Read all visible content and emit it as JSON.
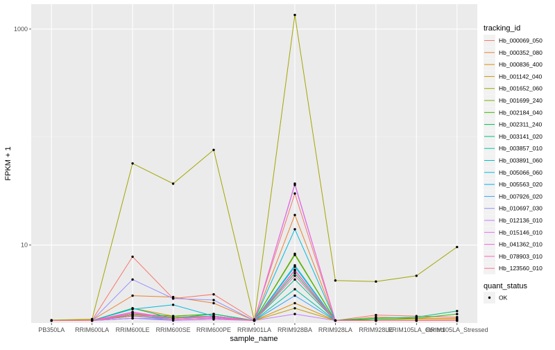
{
  "chart_data": {
    "type": "line",
    "xlabel": "sample_name",
    "ylabel": "FPKM + 1",
    "y_scale": "log10",
    "ylim": [
      1.9,
      1700
    ],
    "grid": true,
    "legend_placement": "right",
    "categories": [
      "PB350LA",
      "RRIM600LA",
      "RRIM600LE",
      "RRIM600SE",
      "RRIM600PE",
      "RRIM901LA",
      "RRIM928BA",
      "RRIM928LA",
      "RRIM928LE",
      "RRIM105LA_Control",
      "RRIM105LA_Stressed"
    ],
    "y_ticks": [
      10,
      1000
    ],
    "y_tick_labels": [
      "10",
      "1000"
    ],
    "legend_title": "tracking_id",
    "series": [
      {
        "name": "Hb_000069_050",
        "color": "#F8766D",
        "values": [
          2.01,
          2.02,
          7.8,
          3.2,
          3.5,
          2.05,
          30.0,
          2.0,
          2.25,
          2.2,
          2.15
        ]
      },
      {
        "name": "Hb_000352_080",
        "color": "#EA8331",
        "values": [
          2.0,
          2.02,
          3.4,
          3.3,
          2.9,
          2.0,
          19.0,
          2.0,
          2.15,
          2.1,
          2.1
        ]
      },
      {
        "name": "Hb_000836_400",
        "color": "#D89000",
        "values": [
          2.0,
          2.0,
          2.6,
          2.2,
          2.3,
          2.0,
          2.9,
          2.0,
          2.05,
          2.05,
          2.05
        ]
      },
      {
        "name": "Hb_001142_040",
        "color": "#C09B00",
        "values": [
          2.0,
          2.0,
          2.4,
          2.1,
          2.2,
          2.0,
          2.6,
          2.0,
          2.0,
          2.0,
          2.0
        ]
      },
      {
        "name": "Hb_001652_060",
        "color": "#A3A500",
        "values": [
          2.02,
          2.06,
          57.0,
          37.0,
          76.0,
          2.02,
          1350.0,
          4.7,
          4.6,
          5.2,
          9.6
        ]
      },
      {
        "name": "Hb_001699_240",
        "color": "#7CAE00",
        "values": [
          2.0,
          2.0,
          2.25,
          2.15,
          2.2,
          2.0,
          8.3,
          2.0,
          2.0,
          2.0,
          2.0
        ]
      },
      {
        "name": "Hb_002184_040",
        "color": "#39B600",
        "values": [
          2.0,
          2.0,
          2.3,
          2.2,
          2.3,
          2.0,
          8.1,
          2.0,
          2.05,
          2.1,
          2.3
        ]
      },
      {
        "name": "Hb_002311_240",
        "color": "#00BB4E",
        "values": [
          2.0,
          2.0,
          2.2,
          2.1,
          2.2,
          2.0,
          5.5,
          2.0,
          2.0,
          2.0,
          2.0
        ]
      },
      {
        "name": "Hb_003141_020",
        "color": "#00BF7D",
        "values": [
          2.0,
          2.0,
          2.6,
          2.1,
          2.3,
          2.0,
          4.8,
          2.0,
          2.1,
          2.15,
          2.45
        ]
      },
      {
        "name": "Hb_003857_010",
        "color": "#00C1A3",
        "values": [
          2.0,
          2.0,
          2.1,
          2.05,
          2.1,
          2.0,
          3.9,
          2.0,
          2.0,
          2.0,
          2.0
        ]
      },
      {
        "name": "Hb_003891_060",
        "color": "#00BFC4",
        "values": [
          2.0,
          2.0,
          2.2,
          2.1,
          2.15,
          2.0,
          6.5,
          2.0,
          2.0,
          2.0,
          2.0
        ]
      },
      {
        "name": "Hb_005066_060",
        "color": "#00BAE0",
        "values": [
          2.0,
          2.0,
          2.55,
          2.8,
          2.2,
          2.0,
          14.0,
          2.0,
          2.0,
          2.0,
          2.0
        ]
      },
      {
        "name": "Hb_005563_020",
        "color": "#00B0F6",
        "values": [
          2.0,
          2.0,
          2.3,
          2.1,
          2.2,
          2.0,
          6.3,
          2.0,
          2.0,
          2.0,
          2.0
        ]
      },
      {
        "name": "Hb_007926_020",
        "color": "#35A2FF",
        "values": [
          2.0,
          2.0,
          2.1,
          2.05,
          2.1,
          2.0,
          3.4,
          2.0,
          2.0,
          2.0,
          2.0
        ]
      },
      {
        "name": "Hb_010697_030",
        "color": "#9590FF",
        "values": [
          2.0,
          2.0,
          4.8,
          3.2,
          3.1,
          2.0,
          36.0,
          2.0,
          2.0,
          2.0,
          2.0
        ]
      },
      {
        "name": "Hb_012136_010",
        "color": "#C77CFF",
        "values": [
          2.0,
          2.0,
          2.1,
          2.0,
          2.05,
          2.0,
          2.3,
          2.0,
          2.0,
          2.0,
          2.0
        ]
      },
      {
        "name": "Hb_015146_010",
        "color": "#E76BF3",
        "values": [
          2.0,
          2.0,
          2.35,
          2.1,
          2.2,
          2.0,
          5.8,
          2.0,
          2.0,
          2.0,
          2.0
        ]
      },
      {
        "name": "Hb_041362_010",
        "color": "#FA62DB",
        "values": [
          2.0,
          2.0,
          2.4,
          2.1,
          2.15,
          2.0,
          37.0,
          2.0,
          2.0,
          2.0,
          2.0
        ]
      },
      {
        "name": "Hb_078903_010",
        "color": "#FF62BC",
        "values": [
          2.0,
          2.0,
          2.2,
          2.05,
          2.1,
          2.0,
          5.2,
          2.0,
          2.0,
          2.0,
          2.0
        ]
      },
      {
        "name": "Hb_123560_010",
        "color": "#FF6C91",
        "values": [
          2.0,
          2.0,
          2.3,
          2.1,
          2.15,
          2.0,
          5.9,
          2.0,
          2.0,
          2.0,
          2.0
        ]
      }
    ],
    "point_legend": {
      "title": "quant_status",
      "entries": [
        "OK"
      ]
    }
  },
  "colors": {
    "panel_background": "#EBEBEB",
    "grid_major": "#FFFFFF",
    "grid_minor": "#F5F5F5",
    "point": "#000000"
  }
}
